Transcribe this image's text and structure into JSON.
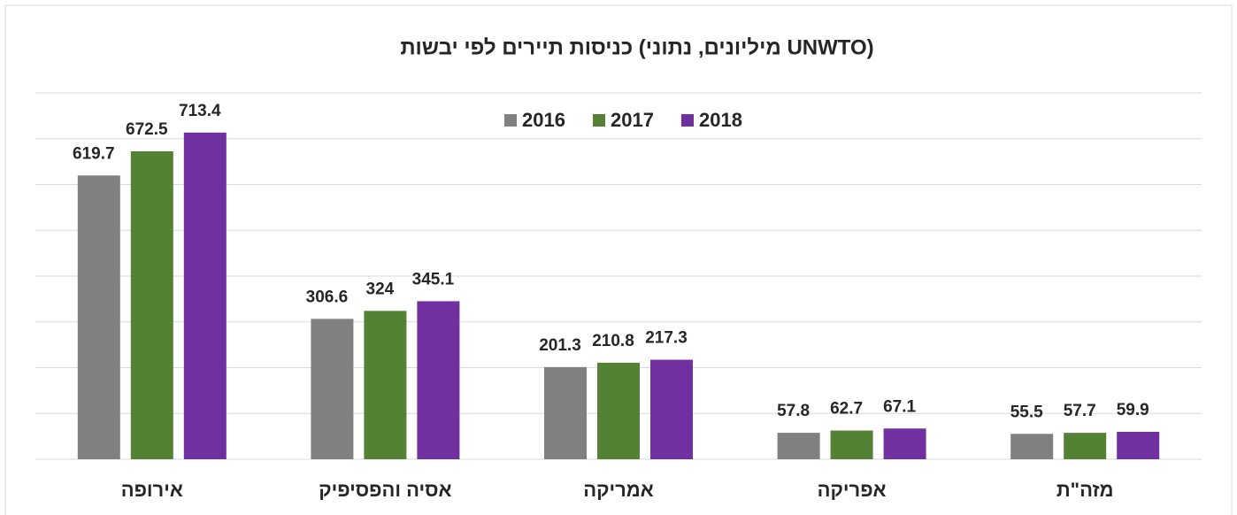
{
  "chart_data": {
    "type": "bar",
    "title": "כניסות תיירים לפי יבשות (מיליונים, נתוני UNWTO)",
    "categories": [
      "אירופה",
      "אסיה והפסיפיק",
      "אמריקה",
      "אפריקה",
      "מזה\"ת"
    ],
    "series": [
      {
        "name": "2016",
        "color": "#808080",
        "values": [
          619.7,
          306.6,
          201.3,
          57.8,
          55.5
        ]
      },
      {
        "name": "2017",
        "color": "#548235",
        "values": [
          672.5,
          324,
          210.8,
          62.7,
          57.7
        ]
      },
      {
        "name": "2018",
        "color": "#7030a0",
        "values": [
          713.4,
          345.1,
          217.3,
          67.1,
          59.9
        ]
      }
    ],
    "ylim": [
      0,
      800
    ],
    "yticks": [
      0,
      100,
      200,
      300,
      400,
      500,
      600,
      700,
      800
    ],
    "show_ytick_labels": false,
    "grid": true,
    "legend": "top"
  }
}
